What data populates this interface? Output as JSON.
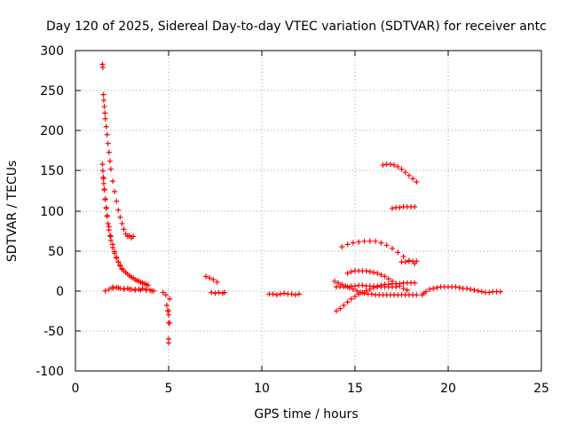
{
  "chart_data": {
    "type": "scatter",
    "title": "Day 120 of 2025, Sidereal Day-to-day VTEC variation (SDTVAR) for receiver antc",
    "xlabel": "GPS time / hours",
    "ylabel": "SDTVAR / TECUs",
    "xlim": [
      0,
      25
    ],
    "ylim": [
      -100,
      300
    ],
    "xticks": [
      0,
      5,
      10,
      15,
      20,
      25
    ],
    "yticks": [
      -100,
      -50,
      0,
      50,
      100,
      150,
      200,
      250,
      300
    ],
    "grid": true,
    "marker": "+",
    "color": "#ff0000",
    "series": [
      {
        "name": "SDTVAR",
        "x": [
          1.45,
          1.47,
          1.5,
          1.52,
          1.55,
          1.58,
          1.6,
          1.65,
          1.7,
          1.75,
          1.8,
          1.85,
          1.9,
          2.0,
          2.1,
          2.2,
          2.3,
          2.4,
          2.5,
          2.6,
          2.7,
          2.8,
          2.9,
          3.0,
          3.1,
          1.5,
          1.55,
          1.6,
          1.65,
          1.7,
          1.75,
          1.8,
          1.85,
          1.9,
          2.0,
          2.1,
          2.2,
          2.3,
          2.4,
          2.5,
          2.6,
          2.7,
          2.8,
          2.9,
          3.0,
          3.1,
          3.2,
          3.3,
          3.4,
          3.5,
          3.6,
          3.7,
          3.8,
          3.9,
          1.45,
          1.47,
          1.5,
          1.52,
          1.55,
          1.6,
          1.65,
          1.7,
          1.8,
          1.9,
          2.0,
          2.1,
          2.2,
          2.3,
          2.4,
          2.5,
          1.6,
          1.8,
          2.0,
          2.2,
          2.4,
          2.6,
          2.8,
          3.0,
          3.2,
          3.4,
          3.6,
          3.8,
          4.0,
          4.2,
          2.0,
          2.3,
          2.6,
          2.9,
          3.2,
          3.5,
          3.8,
          4.1,
          4.7,
          4.85,
          4.9,
          4.95,
          5.0,
          5.0,
          5.0,
          5.0,
          5.05,
          5.0,
          5.05,
          7.0,
          7.2,
          7.4,
          7.6,
          7.3,
          7.5,
          7.7,
          7.9,
          8.0,
          10.4,
          10.6,
          10.8,
          11.0,
          11.2,
          11.4,
          11.6,
          11.8,
          12.0,
          13.9,
          14.1,
          14.3,
          14.5,
          14.7,
          14.9,
          15.1,
          15.3,
          15.5,
          15.7,
          15.9,
          16.1,
          16.3,
          16.5,
          16.7,
          16.9,
          17.1,
          17.3,
          17.5,
          17.7,
          17.9,
          18.1,
          18.3,
          14.0,
          14.2,
          14.4,
          14.6,
          14.8,
          15.0,
          15.2,
          15.4,
          15.6,
          15.8,
          16.0,
          16.2,
          16.4,
          16.6,
          16.8,
          17.0,
          17.2,
          17.4,
          17.6,
          17.8,
          18.0,
          18.2,
          14.3,
          14.6,
          14.9,
          15.2,
          15.5,
          15.8,
          16.1,
          16.4,
          16.7,
          17.0,
          17.3,
          17.6,
          17.9,
          18.2,
          14.0,
          14.2,
          14.4,
          14.6,
          14.8,
          15.0,
          15.2,
          15.4,
          15.6,
          15.8,
          16.0,
          16.2,
          16.4,
          16.6,
          16.8,
          17.0,
          17.2,
          14.6,
          14.8,
          15.0,
          15.2,
          15.4,
          15.6,
          15.8,
          16.0,
          16.2,
          16.4,
          16.6,
          16.8,
          17.0,
          17.2,
          17.4,
          17.6,
          17.8,
          16.5,
          16.7,
          16.9,
          17.1,
          17.3,
          17.5,
          17.7,
          17.9,
          18.1,
          18.3,
          17.0,
          17.2,
          17.4,
          17.6,
          17.8,
          18.0,
          18.2,
          17.5,
          17.7,
          17.9,
          18.1,
          18.3,
          18.6,
          18.7,
          18.8,
          19.0,
          19.2,
          19.4,
          19.6,
          19.8,
          20.0,
          20.2,
          20.4,
          20.6,
          20.8,
          21.0,
          21.2,
          21.4,
          21.6,
          21.8,
          22.0,
          22.2,
          22.4,
          22.6,
          22.8
        ],
        "y": [
          283,
          279,
          245,
          238,
          230,
          222,
          215,
          205,
          195,
          184,
          173,
          162,
          152,
          137,
          124,
          112,
          101,
          92,
          84,
          77,
          71,
          68,
          69,
          66,
          68,
          140,
          127,
          114,
          103,
          93,
          84,
          76,
          69,
          63,
          54,
          47,
          41,
          36,
          32,
          28,
          25,
          23,
          21,
          19,
          17,
          16,
          14,
          13,
          12,
          11,
          10,
          9,
          8,
          7,
          158,
          150,
          142,
          134,
          126,
          115,
          104,
          94,
          80,
          68,
          58,
          49,
          42,
          36,
          31,
          27,
          0,
          2,
          3,
          4,
          3,
          2,
          3,
          2,
          1,
          2,
          3,
          2,
          1,
          0,
          5,
          4,
          3,
          2,
          2,
          1,
          1,
          0,
          -2,
          -5,
          -18,
          -25,
          -30,
          -40,
          -65,
          -60,
          -40,
          -25,
          -10,
          18,
          16,
          14,
          11,
          -2,
          -3,
          -2,
          -3,
          -2,
          -4,
          -4,
          -5,
          -4,
          -3,
          -4,
          -4,
          -5,
          -4,
          12,
          10,
          8,
          6,
          4,
          2,
          0,
          -2,
          -3,
          -4,
          -4,
          -5,
          -5,
          -5,
          -5,
          -5,
          -5,
          -5,
          -5,
          -5,
          -5,
          -5,
          -5,
          -25,
          -22,
          -18,
          -14,
          -10,
          -7,
          -4,
          -2,
          0,
          2,
          4,
          6,
          7,
          8,
          8,
          9,
          9,
          9,
          10,
          10,
          10,
          10,
          55,
          58,
          60,
          61,
          62,
          62,
          62,
          60,
          57,
          53,
          48,
          43,
          38,
          34,
          5,
          5,
          5,
          5,
          6,
          6,
          7,
          7,
          6,
          6,
          6,
          5,
          5,
          5,
          5,
          5,
          5,
          22,
          24,
          25,
          25,
          25,
          25,
          24,
          23,
          22,
          20,
          18,
          15,
          12,
          9,
          6,
          3,
          1,
          157,
          158,
          158,
          157,
          155,
          152,
          148,
          144,
          140,
          136,
          103,
          104,
          104,
          105,
          105,
          105,
          105,
          36,
          36,
          37,
          37,
          37,
          -5,
          -3,
          -1,
          2,
          3,
          4,
          5,
          5,
          5,
          5,
          5,
          4,
          3,
          3,
          2,
          1,
          0,
          -1,
          -2,
          -2,
          -1,
          -1,
          -1
        ]
      }
    ]
  }
}
